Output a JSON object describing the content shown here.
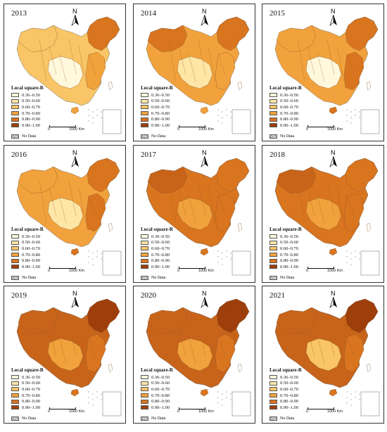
{
  "figure": {
    "legend_title": "Local square-R",
    "classes": [
      {
        "label": "0.36–0.50",
        "color": "#fff8dc"
      },
      {
        "label": "0.50–0.60",
        "color": "#fde6a6"
      },
      {
        "label": "0.60–0.70",
        "color": "#f9c567"
      },
      {
        "label": "0.70–0.80",
        "color": "#f2a23c"
      },
      {
        "label": "0.80–0.90",
        "color": "#d9741f"
      },
      {
        "label": "0.90–1.00",
        "color": "#9e3f0b"
      }
    ],
    "nodata_label": "No Data",
    "north_label": "N",
    "scale_start": "0",
    "scale_end": "1000 Km"
  },
  "panels": [
    {
      "year": "2013",
      "base": "#f9c567",
      "southwest": "#fff8dc",
      "east": "#f2a23c",
      "northeast": "#d9741f",
      "northwest": "#f9c567"
    },
    {
      "year": "2014",
      "base": "#f2a23c",
      "southwest": "#fde6a6",
      "east": "#f2a23c",
      "northeast": "#d9741f",
      "northwest": "#d9741f"
    },
    {
      "year": "2015",
      "base": "#f2a23c",
      "southwest": "#fff8dc",
      "east": "#d9741f",
      "northeast": "#d9741f",
      "northwest": "#f2a23c"
    },
    {
      "year": "2016",
      "base": "#f2a23c",
      "southwest": "#fde6a6",
      "east": "#d9741f",
      "northeast": "#d9741f",
      "northwest": "#f2a23c"
    },
    {
      "year": "2017",
      "base": "#d9741f",
      "southwest": "#f2a23c",
      "east": "#d9741f",
      "northeast": "#d9741f",
      "northwest": "#c8641a"
    },
    {
      "year": "2018",
      "base": "#d9741f",
      "southwest": "#f2a23c",
      "east": "#d9741f",
      "northeast": "#d9741f",
      "northwest": "#c8641a"
    },
    {
      "year": "2019",
      "base": "#c8641a",
      "southwest": "#f2a23c",
      "east": "#d9741f",
      "northeast": "#9e3f0b",
      "northwest": "#c8641a"
    },
    {
      "year": "2020",
      "base": "#c8641a",
      "southwest": "#f2a23c",
      "east": "#d9741f",
      "northeast": "#9e3f0b",
      "northwest": "#c8641a"
    },
    {
      "year": "2021",
      "base": "#c8641a",
      "southwest": "#f9c567",
      "east": "#d9741f",
      "northeast": "#9e3f0b",
      "northwest": "#c8641a"
    }
  ]
}
